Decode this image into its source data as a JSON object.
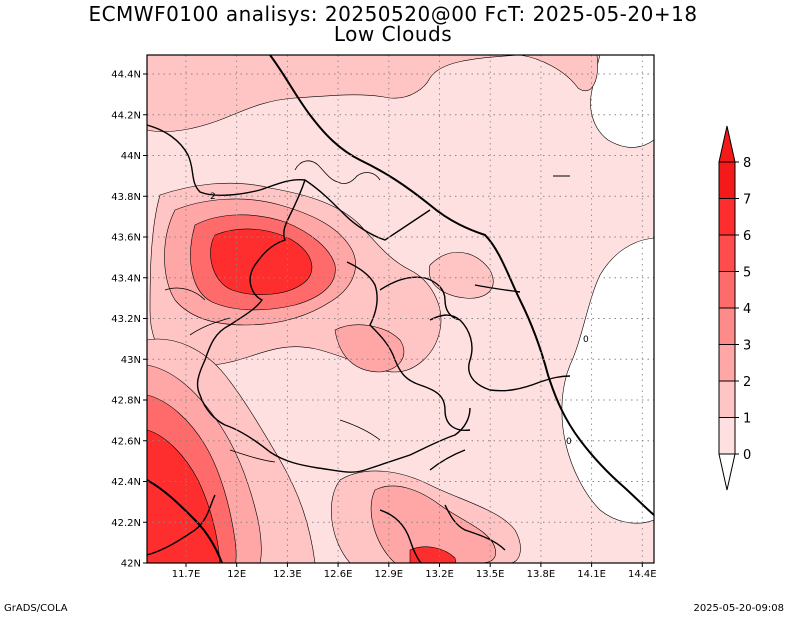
{
  "title": {
    "line1": "ECMWF0100 analisys: 20250520@00 FcT: 2025-05-20+18",
    "line2": "Low Clouds"
  },
  "axes": {
    "x_ticks": [
      "11.7E",
      "12E",
      "12.3E",
      "12.6E",
      "12.9E",
      "13.2E",
      "13.5E",
      "13.8E",
      "14.1E",
      "14.4E"
    ],
    "y_ticks": [
      "44.4N",
      "44.2N",
      "44N",
      "43.8N",
      "43.6N",
      "43.4N",
      "43.2N",
      "43N",
      "42.8N",
      "42.6N",
      "42.4N",
      "42.2N",
      "42N"
    ]
  },
  "colorbar": {
    "labels": [
      "0",
      "1",
      "2",
      "3",
      "4",
      "5",
      "6",
      "7",
      "8"
    ],
    "colors": [
      "#ffffff",
      "#ffe0e0",
      "#ffc4c4",
      "#ffa6a6",
      "#ff8a8a",
      "#ff6b6b",
      "#ff4d4d",
      "#ff2e2e",
      "#f51a1a"
    ]
  },
  "map": {
    "contour_labels": [
      "2",
      "0",
      "0"
    ]
  },
  "footer": {
    "left": "GrADS/COLA",
    "right": "2025-05-20-09:08"
  }
}
